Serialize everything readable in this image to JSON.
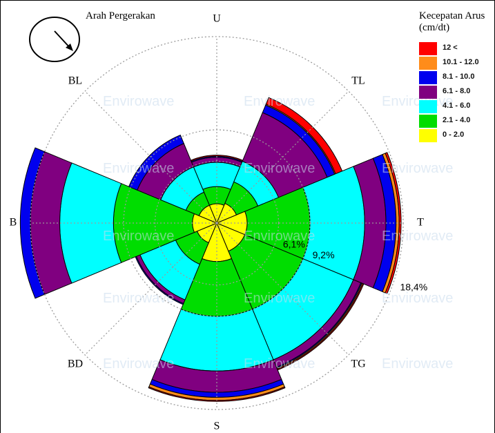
{
  "direction_title": "Arah Pergerakan",
  "legend": {
    "title_line1": "Kecepatan Arus",
    "title_line2": "(cm/dt)",
    "items": [
      {
        "label": "12 <",
        "color": "#ff0000"
      },
      {
        "label": "10.1 - 12.0",
        "color": "#ff8c1a"
      },
      {
        "label": "8.1 - 10.0",
        "color": "#0000ee"
      },
      {
        "label": "6.1 - 8.0",
        "color": "#800080"
      },
      {
        "label": "4.1 - 6.0",
        "color": "#00ffff"
      },
      {
        "label": "2.1 - 4.0",
        "color": "#00dd00"
      },
      {
        "label": "0 - 2.0",
        "color": "#ffff00"
      }
    ]
  },
  "watermark_text": "Envirowave",
  "chart_data": {
    "type": "windrose",
    "direction_labels": [
      "U",
      "TL",
      "T",
      "TG",
      "S",
      "BD",
      "B",
      "BL"
    ],
    "directions_deg": [
      0,
      45,
      90,
      135,
      180,
      225,
      270,
      315
    ],
    "ring_labels": [
      "6,1%",
      "9,2%",
      "18,4%"
    ],
    "ring_values": [
      6.1,
      9.2,
      18.4
    ],
    "ring_label_position": "between T and TG",
    "r_max": 18.4,
    "bin_labels": [
      "0 - 2.0",
      "2.1 - 4.0",
      "4.1 - 6.0",
      "6.1 - 8.0",
      "8.1 - 10.0",
      "10.1 - 12.0",
      "12 <"
    ],
    "cumulative_percent": {
      "U": [
        1.9,
        3.6,
        6.0,
        6.5,
        6.6,
        6.6,
        6.7
      ],
      "TL": [
        2.1,
        4.4,
        6.6,
        11.8,
        12.6,
        12.7,
        13.4
      ],
      "T": [
        3.0,
        9.2,
        14.6,
        16.7,
        17.7,
        18.0,
        18.2
      ],
      "TG": [
        3.0,
        9.2,
        14.6,
        15.4,
        15.5,
        15.6,
        15.7
      ],
      "S": [
        3.8,
        9.2,
        14.6,
        16.7,
        17.2,
        17.5,
        17.6
      ],
      "BD": [
        2.1,
        4.4,
        8.2,
        8.6,
        8.7,
        8.7,
        8.7
      ],
      "B": [
        2.4,
        10.2,
        15.5,
        18.4,
        19.4,
        19.4,
        19.4
      ],
      "BL": [
        1.9,
        3.3,
        6.0,
        8.5,
        9.4,
        9.4,
        9.4
      ]
    }
  }
}
